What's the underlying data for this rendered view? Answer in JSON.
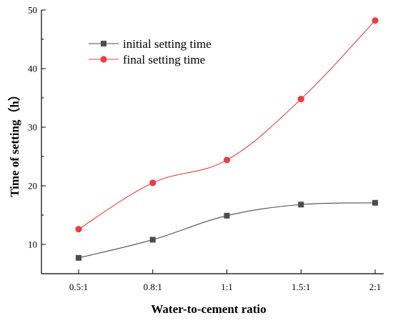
{
  "chart_data": {
    "type": "line",
    "title": "",
    "xlabel": "Water-to-cement ratio",
    "ylabel": "Time of setting（h）",
    "categories": [
      "0.5:1",
      "0.8:1",
      "1:1",
      "1.5:1",
      "2:1"
    ],
    "ylim": [
      5,
      50
    ],
    "yticks": [
      10,
      20,
      30,
      40,
      50
    ],
    "grid": false,
    "legend": "top-left",
    "series": [
      {
        "name": "initial setting time",
        "marker": "square",
        "color": "#4d4d4d",
        "values": [
          7.7,
          10.8,
          14.9,
          16.8,
          17.1
        ]
      },
      {
        "name": "final setting time",
        "marker": "circle",
        "color": "#f03c3c",
        "values": [
          12.6,
          20.5,
          24.4,
          34.8,
          48.2
        ]
      }
    ]
  }
}
